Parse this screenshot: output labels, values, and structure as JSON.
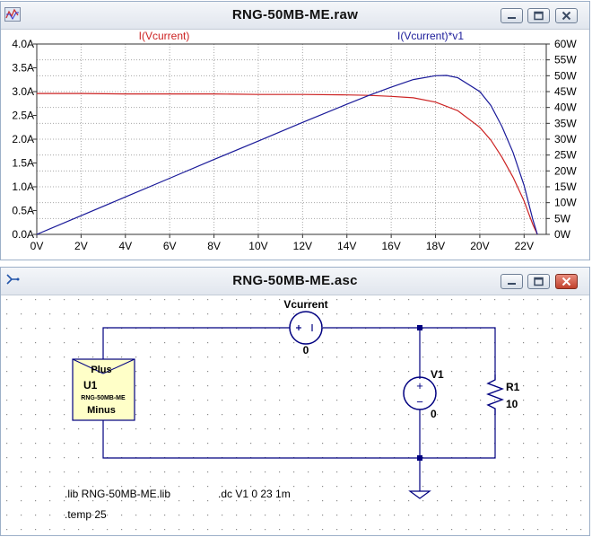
{
  "plot_window": {
    "title": "RNG-50MB-ME.raw",
    "icon": "waveform-icon",
    "trace_left": "I(Vcurrent)",
    "trace_right": "I(Vcurrent)*v1",
    "colors": {
      "current": "#cc2222",
      "power": "#1a1a99",
      "grid": "#a8a8a8",
      "axis": "#333333"
    }
  },
  "chart_data": {
    "type": "line",
    "title": "",
    "xlabel": "",
    "ylabel_left": "",
    "ylabel_right": "",
    "xlim": [
      0,
      23
    ],
    "ylim_left": [
      0,
      4
    ],
    "ylim_right": [
      0,
      60
    ],
    "x_ticks": [
      "0V",
      "2V",
      "4V",
      "6V",
      "8V",
      "10V",
      "12V",
      "14V",
      "16V",
      "18V",
      "20V",
      "22V"
    ],
    "y_left_ticks": [
      "4.0A",
      "3.5A",
      "3.0A",
      "2.5A",
      "2.0A",
      "1.5A",
      "1.0A",
      "0.5A",
      "0.0A"
    ],
    "y_right_ticks": [
      "60W",
      "55W",
      "50W",
      "45W",
      "40W",
      "35W",
      "30W",
      "25W",
      "20W",
      "15W",
      "10W",
      "5W",
      "0W"
    ],
    "grid": true,
    "series": [
      {
        "name": "I(Vcurrent)",
        "axis": "left",
        "x": [
          0,
          2,
          4,
          6,
          8,
          10,
          12,
          14,
          15,
          16,
          17,
          18,
          19,
          20,
          20.5,
          21,
          21.5,
          22,
          22.2,
          22.4,
          22.6
        ],
        "y": [
          2.96,
          2.96,
          2.95,
          2.95,
          2.95,
          2.94,
          2.94,
          2.93,
          2.92,
          2.9,
          2.87,
          2.78,
          2.6,
          2.25,
          1.98,
          1.62,
          1.2,
          0.7,
          0.45,
          0.2,
          0.0
        ]
      },
      {
        "name": "I(Vcurrent)*v1",
        "axis": "right",
        "x": [
          0,
          2,
          4,
          6,
          8,
          10,
          12,
          14,
          15,
          16,
          17,
          18,
          18.5,
          19,
          20,
          20.5,
          21,
          21.5,
          22,
          22.2,
          22.4,
          22.6
        ],
        "y": [
          0,
          5.9,
          11.8,
          17.7,
          23.6,
          29.4,
          35.3,
          41.0,
          43.8,
          46.4,
          48.8,
          50.0,
          50.1,
          49.4,
          45.0,
          40.6,
          34.0,
          25.8,
          15.4,
          10.0,
          4.5,
          0
        ]
      }
    ]
  },
  "schematic_window": {
    "title": "RNG-50MB-ME.asc",
    "icon": "schematic-icon",
    "components": {
      "vcurrent_name": "Vcurrent",
      "vcurrent_value": "0",
      "v1_name": "V1",
      "v1_value": "0",
      "r1_name": "R1",
      "r1_value": "10",
      "u1_plus": "Plus",
      "u1_name": "U1",
      "u1_model": "RNG-50MB-ME",
      "u1_minus": "Minus",
      "plus_sign": "+",
      "minus_sign": "−"
    },
    "directives": {
      "lib": ".lib RNG-50MB-ME.lib",
      "dc": ".dc V1 0 23 1m",
      "temp": ".temp 25"
    }
  }
}
